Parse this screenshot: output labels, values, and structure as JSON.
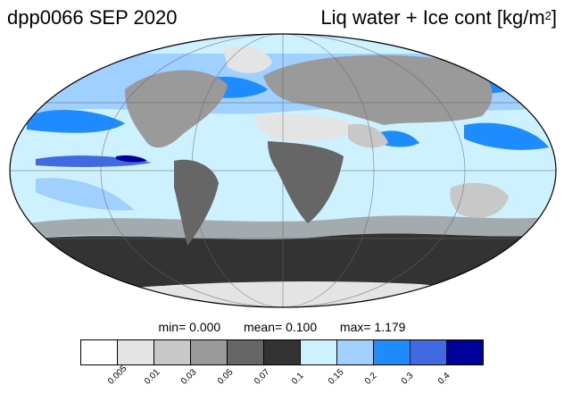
{
  "header": {
    "title_left": "dpp0066 SEP 2020",
    "title_right_text": "Liq water + Ice cont [kg/m",
    "title_right_sup": "2",
    "title_right_end": "]"
  },
  "stats": {
    "min_label": "min=",
    "min_value": "0.000",
    "mean_label": "mean=",
    "mean_value": "0.100",
    "max_label": "max=",
    "max_value": "1.179"
  },
  "colorbar": {
    "colors": [
      "#ffffff",
      "#e4e4e4",
      "#c8c8c8",
      "#9a9a9a",
      "#666666",
      "#333333",
      "#cdf1ff",
      "#9fd0ff",
      "#1e8cff",
      "#4169e1",
      "#00009a"
    ],
    "ticks": [
      "0.005",
      "0.01",
      "0.03",
      "0.05",
      "0.07",
      "0.1",
      "0.15",
      "0.2",
      "0.3",
      "0.4"
    ]
  },
  "map": {
    "projection": "mollweide",
    "ocean_color": "#cdf1ff",
    "land_color": "#c8c8c8",
    "grid": true
  }
}
